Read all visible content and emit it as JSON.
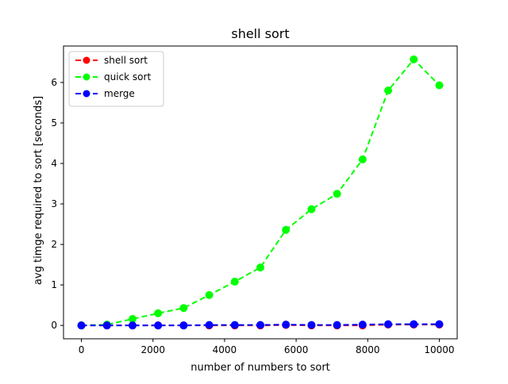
{
  "chart_data": {
    "type": "line",
    "title": "shell sort",
    "xlabel": "number of numbers to sort",
    "ylabel": "avg timge required to sort  [seconds]",
    "xlim": [
      -500,
      10500
    ],
    "ylim": [
      -0.33,
      6.9
    ],
    "xticks": [
      0,
      2000,
      4000,
      6000,
      8000,
      10000
    ],
    "yticks": [
      0,
      1,
      2,
      3,
      4,
      5,
      6
    ],
    "grid": false,
    "legend_position": "top-left",
    "x": [
      0,
      714,
      1429,
      2143,
      2857,
      3571,
      4286,
      5000,
      5714,
      6429,
      7143,
      7857,
      8571,
      9286,
      10000
    ],
    "series": [
      {
        "name": "shell sort",
        "color": "#ff0000",
        "values": [
          0.0,
          0.0,
          0.0,
          0.0,
          0.0,
          0.0,
          0.0,
          0.0,
          0.01,
          0.0,
          0.0,
          0.0,
          0.02,
          0.02,
          0.02
        ]
      },
      {
        "name": "quick sort",
        "color": "#00ff00",
        "values": [
          0.0,
          0.02,
          0.16,
          0.3,
          0.43,
          0.75,
          1.08,
          1.43,
          2.36,
          2.87,
          3.25,
          4.1,
          5.8,
          6.57,
          5.93
        ]
      },
      {
        "name": "merge",
        "color": "#0000ff",
        "values": [
          0.0,
          0.0,
          0.0,
          0.0,
          0.0,
          0.01,
          0.01,
          0.01,
          0.02,
          0.01,
          0.01,
          0.02,
          0.03,
          0.03,
          0.03
        ]
      }
    ]
  }
}
